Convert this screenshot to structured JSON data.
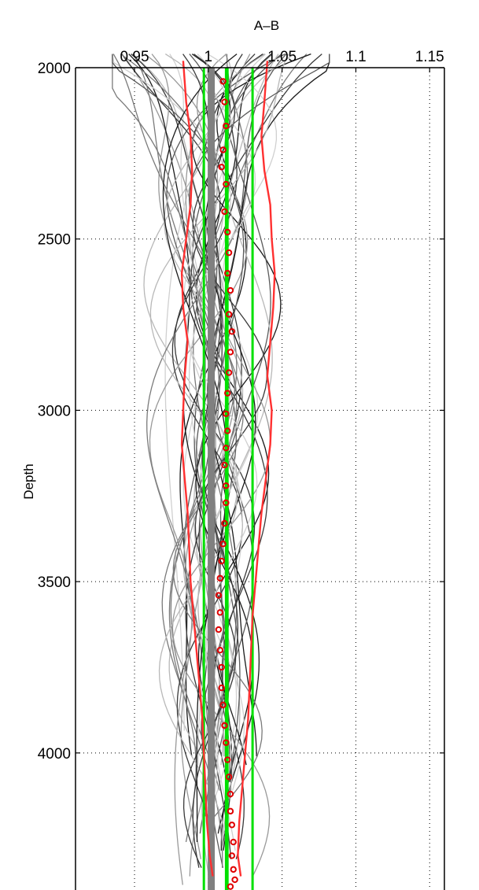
{
  "chart_data": {
    "type": "line",
    "title": "",
    "xlabel": "A–B",
    "ylabel": "Depth",
    "x_axis_position": "top",
    "y_axis_reversed": true,
    "xlim": [
      0.91,
      1.16
    ],
    "ylim": [
      2000,
      4400
    ],
    "xticks": [
      0.95,
      1,
      1.05,
      1.1,
      1.15
    ],
    "xtick_labels": [
      "0.95",
      "1",
      "1.05",
      "1.1",
      "1.15"
    ],
    "yticks": [
      2000,
      2500,
      3000,
      3500,
      4000
    ],
    "ytick_labels": [
      "2000",
      "2500",
      "3000",
      "3500",
      "4000"
    ],
    "grid": "dotted",
    "legend": "none",
    "colors": {
      "members": [
        "#1a1a1a",
        "#3a3a3a",
        "#5a5a5a",
        "#7a7a7a",
        "#999999",
        "#b8b8b8",
        "#d0d0d0"
      ],
      "reference": "#808080",
      "envelope": "#ff3030",
      "green": "#00e000",
      "markers": "#e00000"
    },
    "members": {
      "count": 45,
      "depth_range": [
        1960,
        4400
      ],
      "note_on_values": "family of profiles spread between about 0.94 and 1.08"
    },
    "reference_line": {
      "x": 1.002,
      "depth": [
        2000,
        4400
      ]
    },
    "green_lines": [
      {
        "name": "",
        "points": [
          [
            0.997,
            2000
          ],
          [
            0.997,
            4400
          ]
        ]
      },
      {
        "name": "",
        "points": [
          [
            1.012,
            2000
          ],
          [
            1.012,
            4400
          ]
        ]
      },
      {
        "name": "",
        "points": [
          [
            1.013,
            2000
          ],
          [
            1.013,
            4400
          ]
        ]
      },
      {
        "name": "",
        "points": [
          [
            1.03,
            2000
          ],
          [
            1.03,
            4400
          ]
        ]
      }
    ],
    "red_lines": [
      {
        "name": "",
        "points": [
          [
            0.983,
            1980
          ],
          [
            0.985,
            2100
          ],
          [
            0.988,
            2200
          ],
          [
            0.989,
            2300
          ],
          [
            0.988,
            2400
          ],
          [
            0.985,
            2500
          ],
          [
            0.982,
            2600
          ],
          [
            0.983,
            2700
          ],
          [
            0.986,
            2800
          ],
          [
            0.984,
            2900
          ],
          [
            0.983,
            3000
          ],
          [
            0.982,
            3100
          ],
          [
            0.984,
            3200
          ],
          [
            0.986,
            3300
          ],
          [
            0.987,
            3400
          ],
          [
            0.988,
            3500
          ],
          [
            0.99,
            3600
          ],
          [
            0.992,
            3700
          ],
          [
            0.994,
            3800
          ],
          [
            0.996,
            3900
          ],
          [
            0.997,
            4000
          ],
          [
            0.998,
            4100
          ],
          [
            0.999,
            4200
          ],
          [
            1.001,
            4300
          ],
          [
            1.003,
            4360
          ]
        ]
      },
      {
        "name": "",
        "points": [
          [
            1.04,
            1980
          ],
          [
            1.038,
            2100
          ],
          [
            1.036,
            2200
          ],
          [
            1.038,
            2300
          ],
          [
            1.042,
            2400
          ],
          [
            1.043,
            2500
          ],
          [
            1.045,
            2600
          ],
          [
            1.044,
            2700
          ],
          [
            1.042,
            2800
          ],
          [
            1.04,
            2900
          ],
          [
            1.043,
            3000
          ],
          [
            1.042,
            3100
          ],
          [
            1.039,
            3200
          ],
          [
            1.036,
            3300
          ],
          [
            1.034,
            3400
          ],
          [
            1.032,
            3500
          ],
          [
            1.03,
            3600
          ],
          [
            1.029,
            3700
          ],
          [
            1.028,
            3800
          ],
          [
            1.027,
            3900
          ],
          [
            1.025,
            4000
          ],
          [
            1.023,
            4100
          ],
          [
            1.021,
            4200
          ],
          [
            1.02,
            4300
          ],
          [
            1.022,
            4360
          ]
        ]
      }
    ],
    "marker_series": {
      "name": "",
      "marker": "circle",
      "points": [
        [
          1.01,
          2040
        ],
        [
          1.011,
          2100
        ],
        [
          1.012,
          2170
        ],
        [
          1.01,
          2240
        ],
        [
          1.009,
          2290
        ],
        [
          1.012,
          2340
        ],
        [
          1.011,
          2420
        ],
        [
          1.013,
          2480
        ],
        [
          1.014,
          2540
        ],
        [
          1.013,
          2600
        ],
        [
          1.015,
          2650
        ],
        [
          1.014,
          2720
        ],
        [
          1.016,
          2770
        ],
        [
          1.015,
          2830
        ],
        [
          1.014,
          2890
        ],
        [
          1.013,
          2950
        ],
        [
          1.012,
          3010
        ],
        [
          1.013,
          3060
        ],
        [
          1.012,
          3110
        ],
        [
          1.011,
          3160
        ],
        [
          1.012,
          3220
        ],
        [
          1.012,
          3270
        ],
        [
          1.011,
          3330
        ],
        [
          1.01,
          3390
        ],
        [
          1.009,
          3440
        ],
        [
          1.008,
          3490
        ],
        [
          1.007,
          3540
        ],
        [
          1.008,
          3590
        ],
        [
          1.007,
          3640
        ],
        [
          1.008,
          3700
        ],
        [
          1.009,
          3750
        ],
        [
          1.009,
          3810
        ],
        [
          1.01,
          3860
        ],
        [
          1.011,
          3920
        ],
        [
          1.012,
          3970
        ],
        [
          1.013,
          4020
        ],
        [
          1.014,
          4070
        ],
        [
          1.015,
          4120
        ],
        [
          1.015,
          4170
        ],
        [
          1.016,
          4210
        ],
        [
          1.017,
          4260
        ],
        [
          1.016,
          4300
        ],
        [
          1.017,
          4340
        ],
        [
          1.018,
          4370
        ],
        [
          1.015,
          4390
        ],
        [
          1.017,
          4410
        ]
      ]
    }
  }
}
